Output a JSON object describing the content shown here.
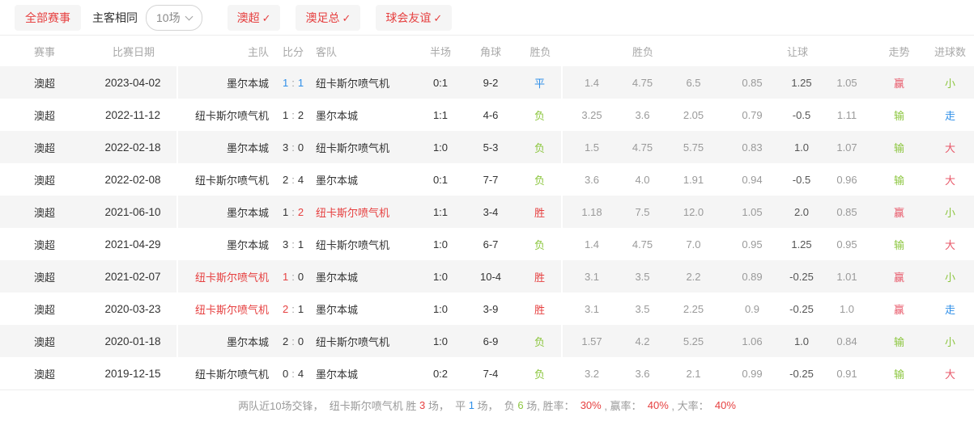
{
  "colors": {
    "red": "#e64040",
    "rose": "#e8596a",
    "blue": "#2f8fe8",
    "green": "#8cc63f",
    "dark": "#333333",
    "gray": "#9a9a9a"
  },
  "toolbar": {
    "all_matches": "全部赛事",
    "same_home_away": "主客相同",
    "count_select": "10场",
    "check_mark": "✓",
    "filters": [
      {
        "label": "澳超"
      },
      {
        "label": "澳足总"
      },
      {
        "label": "球会友谊"
      }
    ]
  },
  "table": {
    "headers": {
      "league": "赛事",
      "date": "比赛日期",
      "home": "主队",
      "score": "比分",
      "away": "客队",
      "half": "半场",
      "corner": "角球",
      "result": "胜负",
      "odds": "胜负",
      "handicap": "让球",
      "trend": "走势",
      "goal": "进球数"
    },
    "rows": [
      {
        "league": "澳超",
        "date": "2023-04-02",
        "home": "墨尔本城",
        "home_c": "dark",
        "sh": "1",
        "sh_c": "blue",
        "sa": "1",
        "sa_c": "blue",
        "away": "纽卡斯尔喷气机",
        "away_c": "dark",
        "half": "0:1",
        "corner": "9-2",
        "result": "平",
        "result_c": "blue",
        "odds": [
          "1.4",
          "4.75",
          "6.5"
        ],
        "handicap": [
          "0.85",
          "1.25",
          "1.05"
        ],
        "trend": "赢",
        "trend_c": "rose",
        "goal": "小",
        "goal_c": "green"
      },
      {
        "league": "澳超",
        "date": "2022-11-12",
        "home": "纽卡斯尔喷气机",
        "home_c": "dark",
        "sh": "1",
        "sh_c": "dark",
        "sa": "2",
        "sa_c": "dark",
        "away": "墨尔本城",
        "away_c": "dark",
        "half": "1:1",
        "corner": "4-6",
        "result": "负",
        "result_c": "green",
        "odds": [
          "3.25",
          "3.6",
          "2.05"
        ],
        "handicap": [
          "0.79",
          "-0.5",
          "1.11"
        ],
        "trend": "输",
        "trend_c": "green",
        "goal": "走",
        "goal_c": "blue"
      },
      {
        "league": "澳超",
        "date": "2022-02-18",
        "home": "墨尔本城",
        "home_c": "dark",
        "sh": "3",
        "sh_c": "dark",
        "sa": "0",
        "sa_c": "dark",
        "away": "纽卡斯尔喷气机",
        "away_c": "dark",
        "half": "1:0",
        "corner": "5-3",
        "result": "负",
        "result_c": "green",
        "odds": [
          "1.5",
          "4.75",
          "5.75"
        ],
        "handicap": [
          "0.83",
          "1.0",
          "1.07"
        ],
        "trend": "输",
        "trend_c": "green",
        "goal": "大",
        "goal_c": "rose"
      },
      {
        "league": "澳超",
        "date": "2022-02-08",
        "home": "纽卡斯尔喷气机",
        "home_c": "dark",
        "sh": "2",
        "sh_c": "dark",
        "sa": "4",
        "sa_c": "dark",
        "away": "墨尔本城",
        "away_c": "dark",
        "half": "0:1",
        "corner": "7-7",
        "result": "负",
        "result_c": "green",
        "odds": [
          "3.6",
          "4.0",
          "1.91"
        ],
        "handicap": [
          "0.94",
          "-0.5",
          "0.96"
        ],
        "trend": "输",
        "trend_c": "green",
        "goal": "大",
        "goal_c": "rose"
      },
      {
        "league": "澳超",
        "date": "2021-06-10",
        "home": "墨尔本城",
        "home_c": "dark",
        "sh": "1",
        "sh_c": "dark",
        "sa": "2",
        "sa_c": "red",
        "away": "纽卡斯尔喷气机",
        "away_c": "red",
        "half": "1:1",
        "corner": "3-4",
        "result": "胜",
        "result_c": "red",
        "odds": [
          "1.18",
          "7.5",
          "12.0"
        ],
        "handicap": [
          "1.05",
          "2.0",
          "0.85"
        ],
        "trend": "赢",
        "trend_c": "rose",
        "goal": "小",
        "goal_c": "green"
      },
      {
        "league": "澳超",
        "date": "2021-04-29",
        "home": "墨尔本城",
        "home_c": "dark",
        "sh": "3",
        "sh_c": "dark",
        "sa": "1",
        "sa_c": "dark",
        "away": "纽卡斯尔喷气机",
        "away_c": "dark",
        "half": "1:0",
        "corner": "6-7",
        "result": "负",
        "result_c": "green",
        "odds": [
          "1.4",
          "4.75",
          "7.0"
        ],
        "handicap": [
          "0.95",
          "1.25",
          "0.95"
        ],
        "trend": "输",
        "trend_c": "green",
        "goal": "大",
        "goal_c": "rose"
      },
      {
        "league": "澳超",
        "date": "2021-02-07",
        "home": "纽卡斯尔喷气机",
        "home_c": "red",
        "sh": "1",
        "sh_c": "red",
        "sa": "0",
        "sa_c": "dark",
        "away": "墨尔本城",
        "away_c": "dark",
        "half": "1:0",
        "corner": "10-4",
        "result": "胜",
        "result_c": "red",
        "odds": [
          "3.1",
          "3.5",
          "2.2"
        ],
        "handicap": [
          "0.89",
          "-0.25",
          "1.01"
        ],
        "trend": "赢",
        "trend_c": "rose",
        "goal": "小",
        "goal_c": "green"
      },
      {
        "league": "澳超",
        "date": "2020-03-23",
        "home": "纽卡斯尔喷气机",
        "home_c": "red",
        "sh": "2",
        "sh_c": "red",
        "sa": "1",
        "sa_c": "dark",
        "away": "墨尔本城",
        "away_c": "dark",
        "half": "1:0",
        "corner": "3-9",
        "result": "胜",
        "result_c": "red",
        "odds": [
          "3.1",
          "3.5",
          "2.25"
        ],
        "handicap": [
          "0.9",
          "-0.25",
          "1.0"
        ],
        "trend": "赢",
        "trend_c": "rose",
        "goal": "走",
        "goal_c": "blue"
      },
      {
        "league": "澳超",
        "date": "2020-01-18",
        "home": "墨尔本城",
        "home_c": "dark",
        "sh": "2",
        "sh_c": "dark",
        "sa": "0",
        "sa_c": "dark",
        "away": "纽卡斯尔喷气机",
        "away_c": "dark",
        "half": "1:0",
        "corner": "6-9",
        "result": "负",
        "result_c": "green",
        "odds": [
          "1.57",
          "4.2",
          "5.25"
        ],
        "handicap": [
          "1.06",
          "1.0",
          "0.84"
        ],
        "trend": "输",
        "trend_c": "green",
        "goal": "小",
        "goal_c": "green"
      },
      {
        "league": "澳超",
        "date": "2019-12-15",
        "home": "纽卡斯尔喷气机",
        "home_c": "dark",
        "sh": "0",
        "sh_c": "dark",
        "sa": "4",
        "sa_c": "dark",
        "away": "墨尔本城",
        "away_c": "dark",
        "half": "0:2",
        "corner": "7-4",
        "result": "负",
        "result_c": "green",
        "odds": [
          "3.2",
          "3.6",
          "2.1"
        ],
        "handicap": [
          "0.99",
          "-0.25",
          "0.91"
        ],
        "trend": "输",
        "trend_c": "green",
        "goal": "大",
        "goal_c": "rose"
      }
    ]
  },
  "summary": {
    "parts": [
      {
        "t": "两队近10场交锋，  纽卡斯尔喷气机 胜 ",
        "c": "gray"
      },
      {
        "t": "3",
        "c": "red"
      },
      {
        "t": " 场，  平 ",
        "c": "gray"
      },
      {
        "t": "1",
        "c": "blue"
      },
      {
        "t": " 场，  负 ",
        "c": "gray"
      },
      {
        "t": "6",
        "c": "green"
      },
      {
        "t": " 场, 胜率：  ",
        "c": "gray"
      },
      {
        "t": "30%",
        "c": "red"
      },
      {
        "t": " , 赢率：  ",
        "c": "gray"
      },
      {
        "t": "40%",
        "c": "red"
      },
      {
        "t": " , 大率：  ",
        "c": "gray"
      },
      {
        "t": "40%",
        "c": "red"
      }
    ]
  }
}
